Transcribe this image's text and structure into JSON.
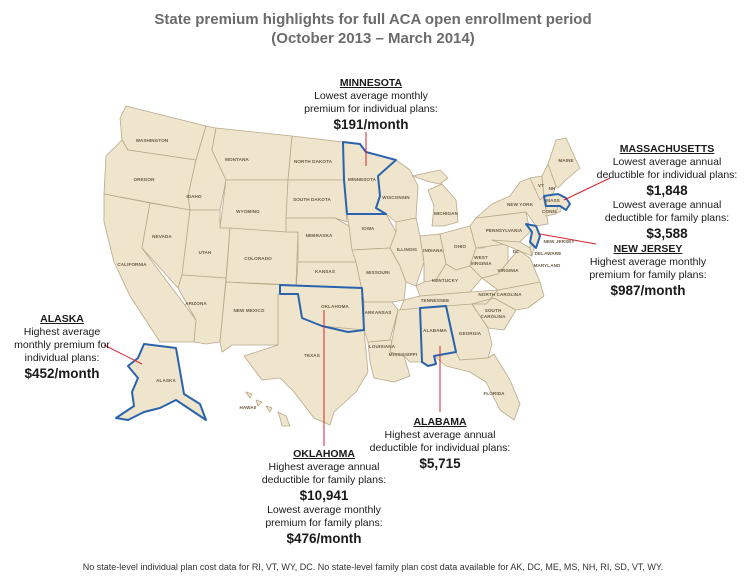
{
  "title": "State premium highlights for full ACA open enrollment period",
  "subtitle": "(October 2013 – March 2014)",
  "state_labels": {
    "washington": "WASHINGTON",
    "oregon": "OREGON",
    "california": "CALIFORNIA",
    "nevada": "NEVADA",
    "idaho": "IDAHO",
    "montana": "MONTANA",
    "wyoming": "WYOMING",
    "utah": "UTAH",
    "arizona": "ARIZONA",
    "colorado": "COLORADO",
    "new_mexico": "NEW MEXICO",
    "north_dakota": "NORTH DAKOTA",
    "south_dakota": "SOUTH DAKOTA",
    "nebraska": "NEBRASKA",
    "kansas": "KANSAS",
    "oklahoma": "OKLAHOMA",
    "texas": "TEXAS",
    "minnesota": "MINNESOTA",
    "iowa": "IOWA",
    "missouri": "MISSOURI",
    "arkansas": "ARKANSAS",
    "louisiana": "LOUISIANA",
    "wisconsin": "WISCONSIN",
    "illinois": "ILLINOIS",
    "michigan": "MICHIGAN",
    "indiana": "INDIANA",
    "ohio": "OHIO",
    "kentucky": "KENTUCKY",
    "tennessee": "TENNESSEE",
    "mississippi": "MISSISSIPPI",
    "alabama": "ALABAMA",
    "georgia": "GEORGIA",
    "florida": "FLORIDA",
    "south_carolina_1": "SOUTH",
    "south_carolina_2": "CAROLINA",
    "north_carolina": "NORTH CAROLINA",
    "virginia": "VIRGINIA",
    "west_virginia_1": "WEST",
    "west_virginia_2": "VIRGINIA",
    "pennsylvania": "PENNSYLVANIA",
    "new_york": "NEW YORK",
    "maryland": "MARYLAND",
    "delaware": "DELAWARE",
    "new_jersey": "NEW JERSEY",
    "dc": "DC",
    "maine": "MAINE",
    "vermont": "VT",
    "new_hampshire": "NH",
    "massachusetts": "MASS",
    "connecticut": "CONN",
    "alaska": "ALASKA",
    "hawaii": "HAWAII"
  },
  "callouts": {
    "minnesota": {
      "name": "MINNESOTA",
      "lines": [
        "Lowest average monthly",
        "premium for individual plans:"
      ],
      "value": "$191/month"
    },
    "massachusetts": {
      "name": "MASSACHUSETTS",
      "line1": "Lowest average annual",
      "line2": "deductible for individual plans:",
      "value1": "$1,848",
      "line3": "Lowest average annual",
      "line4": "deductible for family plans:",
      "value2": "$3,588"
    },
    "new_jersey": {
      "name": "NEW JERSEY",
      "lines": [
        "Highest average monthly",
        "premium for family plans:"
      ],
      "value": "$987/month"
    },
    "alaska": {
      "name": "ALASKA",
      "lines": [
        "Highest average",
        "monthly premium for",
        "individual plans:"
      ],
      "value": "$452/month"
    },
    "alabama": {
      "name": "ALABAMA",
      "lines": [
        "Highest average annual",
        "deductible for individual plans:"
      ],
      "value": "$5,715"
    },
    "oklahoma": {
      "name": "OKLAHOMA",
      "line1": "Highest average annual",
      "line2": "deductible for family plans:",
      "value1": "$10,941",
      "line3": "Lowest average monthly",
      "line4": "premium for family plans:",
      "value2": "$476/month"
    }
  },
  "footnote": "No state-level individual plan cost data for RI, VT, WY, DC. No state-level family plan cost data available for AK, DC, ME, MS, NH, RI, SD, VT, WY.",
  "colors": {
    "land": "#efe5cc",
    "border": "#b8a88a",
    "highlight": "#2a63ad",
    "leader": "#d9232d",
    "title": "#6b6b6b"
  }
}
